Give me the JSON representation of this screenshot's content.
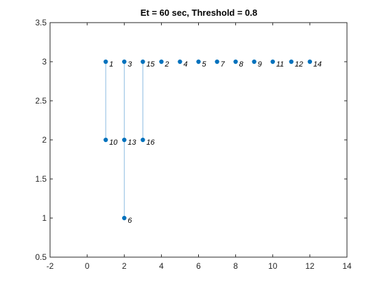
{
  "chart_data": {
    "type": "scatter",
    "title": "Et = 60 sec, Threshold = 0.8",
    "xlabel": "",
    "ylabel": "",
    "xlim": [
      -2,
      14
    ],
    "ylim": [
      0.5,
      3.5
    ],
    "xticks": [
      -2,
      0,
      2,
      4,
      6,
      8,
      10,
      12,
      14
    ],
    "yticks": [
      0.5,
      1,
      1.5,
      2,
      2.5,
      3,
      3.5
    ],
    "xtick_labels": [
      "-2",
      "0",
      "2",
      "4",
      "6",
      "8",
      "10",
      "12",
      "14"
    ],
    "ytick_labels": [
      "0.5",
      "1",
      "1.5",
      "2",
      "2.5",
      "3",
      "3.5"
    ],
    "grid": false,
    "marker_color": "#0072BD",
    "edge_color": "#8CBBE0",
    "nodes": [
      {
        "id": "1",
        "x": 1,
        "y": 3
      },
      {
        "id": "3",
        "x": 2,
        "y": 3
      },
      {
        "id": "15",
        "x": 3,
        "y": 3
      },
      {
        "id": "2",
        "x": 4,
        "y": 3
      },
      {
        "id": "4",
        "x": 5,
        "y": 3
      },
      {
        "id": "5",
        "x": 6,
        "y": 3
      },
      {
        "id": "7",
        "x": 7,
        "y": 3
      },
      {
        "id": "8",
        "x": 8,
        "y": 3
      },
      {
        "id": "9",
        "x": 9,
        "y": 3
      },
      {
        "id": "11",
        "x": 10,
        "y": 3
      },
      {
        "id": "12",
        "x": 11,
        "y": 3
      },
      {
        "id": "14",
        "x": 12,
        "y": 3
      },
      {
        "id": "10",
        "x": 1,
        "y": 2
      },
      {
        "id": "13",
        "x": 2,
        "y": 2
      },
      {
        "id": "16",
        "x": 3,
        "y": 2
      },
      {
        "id": "6",
        "x": 2,
        "y": 1
      }
    ],
    "edges": [
      {
        "from": "1",
        "to": "10"
      },
      {
        "from": "3",
        "to": "13"
      },
      {
        "from": "13",
        "to": "6"
      },
      {
        "from": "15",
        "to": "16"
      }
    ]
  }
}
